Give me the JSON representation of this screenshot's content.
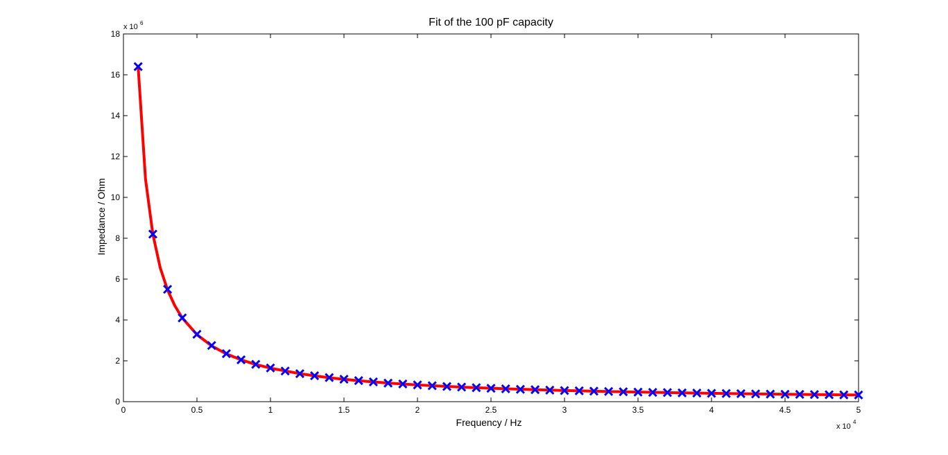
{
  "chart_data": {
    "type": "scatter",
    "title": "Fit of the 100 pF capacity",
    "xlabel": "Frequency / Hz",
    "ylabel": "Impedance / Ohm",
    "x_exponent_label": "x 10",
    "x_exponent": "4",
    "y_exponent_label": "x 10",
    "y_exponent": "6",
    "xlim": [
      0,
      50000
    ],
    "ylim": [
      0,
      18000000
    ],
    "x_ticks": [
      0,
      5000,
      10000,
      15000,
      20000,
      25000,
      30000,
      35000,
      40000,
      45000,
      50000
    ],
    "x_tick_labels": [
      "0",
      "0.5",
      "1",
      "1.5",
      "2",
      "2.5",
      "3",
      "3.5",
      "4",
      "4.5",
      "5"
    ],
    "y_ticks": [
      0,
      2000000,
      4000000,
      6000000,
      8000000,
      10000000,
      12000000,
      14000000,
      16000000,
      18000000
    ],
    "y_tick_labels": [
      "0",
      "2",
      "4",
      "6",
      "8",
      "10",
      "12",
      "14",
      "16",
      "18"
    ],
    "grid": false,
    "series": [
      {
        "kind": "markers",
        "marker": "x",
        "color": "#0000ff",
        "x": [
          1000,
          2000,
          3000,
          4000,
          5000,
          6000,
          7000,
          8000,
          9000,
          10000,
          11000,
          12000,
          13000,
          14000,
          15000,
          16000,
          17000,
          18000,
          19000,
          20000,
          21000,
          22000,
          23000,
          24000,
          25000,
          26000,
          27000,
          28000,
          29000,
          30000,
          31000,
          32000,
          33000,
          34000,
          35000,
          36000,
          37000,
          38000,
          39000,
          40000,
          41000,
          42000,
          43000,
          44000,
          45000,
          46000,
          47000,
          48000,
          49000,
          50000
        ],
        "y": [
          16400000,
          8200000,
          5500000,
          4100000,
          3300000,
          2750000,
          2350000,
          2050000,
          1830000,
          1650000,
          1500000,
          1370000,
          1270000,
          1180000,
          1100000,
          1030000,
          970000,
          910000,
          865000,
          820000,
          780000,
          745000,
          715000,
          685000,
          655000,
          630000,
          605000,
          585000,
          565000,
          545000,
          530000,
          515000,
          500000,
          485000,
          470000,
          455000,
          445000,
          430000,
          420000,
          410000,
          400000,
          390000,
          380000,
          372000,
          364000,
          356000,
          348000,
          340000,
          334000,
          328000
        ]
      },
      {
        "kind": "line",
        "color": "#ff0000",
        "x": [
          1000,
          1500,
          2000,
          2500,
          3000,
          3500,
          4000,
          5000,
          6000,
          7000,
          8000,
          9000,
          10000,
          12000,
          14000,
          16000,
          18000,
          20000,
          23000,
          26000,
          30000,
          34000,
          38000,
          42000,
          46000,
          50000
        ],
        "y": [
          16400000,
          10900000,
          8200000,
          6560000,
          5470000,
          4690000,
          4100000,
          3280000,
          2730000,
          2340000,
          2050000,
          1820000,
          1640000,
          1370000,
          1170000,
          1025000,
          911000,
          820000,
          713000,
          631000,
          547000,
          482000,
          432000,
          390000,
          357000,
          328000
        ]
      }
    ]
  }
}
